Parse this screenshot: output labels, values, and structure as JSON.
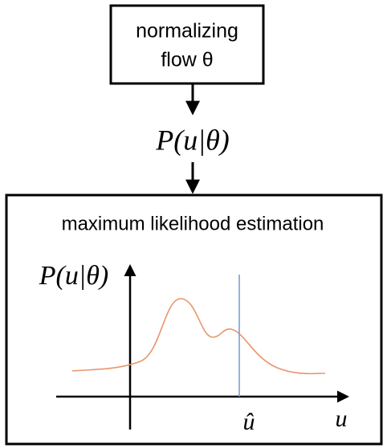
{
  "top_box": {
    "lines": [
      "normalizing",
      "flow θ"
    ]
  },
  "middle_label": "P(u|θ)",
  "bottom_box": {
    "title": "maximum likelihood estimation",
    "y_axis_label": "P(u|θ)",
    "marker_label": "û",
    "x_axis_label": "u"
  }
}
